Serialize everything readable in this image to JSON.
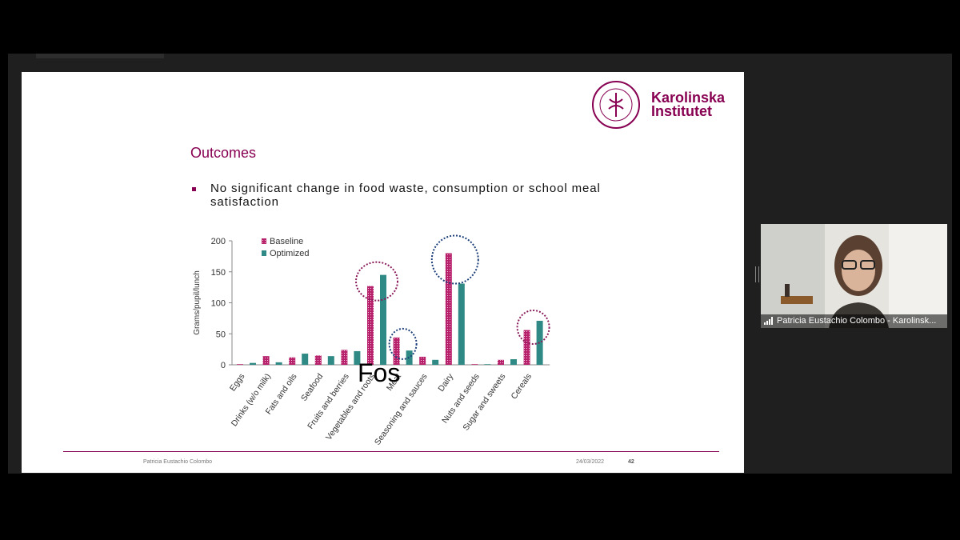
{
  "slide": {
    "logo": {
      "line1": "Karolinska",
      "line2": "Institutet",
      "seal_text": "KAROLINSKA INSTITUTET ANNO 1810"
    },
    "title": "Outcomes",
    "bullet": "No significant change in food waste, consumption or school meal satisfaction",
    "footer": {
      "presenter": "Patricia Eustachio Colombo",
      "date": "24/03/2022",
      "page": "42"
    }
  },
  "caption": "Fos",
  "participant": {
    "name": "Patricia Eustachio Colombo - Karolinsk..."
  },
  "colors": {
    "brand": "#870052",
    "baseline": "#b7206b",
    "optimized": "#2f8a85"
  },
  "chart_data": {
    "type": "bar",
    "ylabel": "Grams/pupil/lunch",
    "ylim": [
      0,
      200
    ],
    "yticks": [
      "0",
      "50",
      "100",
      "150",
      "200"
    ],
    "categories": [
      "Eggs",
      "Drinks (w/o milk)",
      "Fats and oils",
      "Seafood",
      "Fruits and berries",
      "Vegetables and roots",
      "Meat",
      "Seasoning and sauces",
      "Dairy",
      "Nuts and seeds",
      "Sugar and sweets",
      "Cereals"
    ],
    "series": [
      {
        "name": "Baseline",
        "values": [
          1,
          14,
          12,
          15,
          24,
          127,
          44,
          13,
          180,
          1,
          8,
          56
        ]
      },
      {
        "name": "Optimized",
        "values": [
          3,
          4,
          18,
          14,
          22,
          145,
          23,
          8,
          131,
          1,
          9,
          71
        ]
      }
    ],
    "highlight_circles": [
      "Vegetables and roots",
      "Meat",
      "Dairy",
      "Cereals"
    ]
  }
}
